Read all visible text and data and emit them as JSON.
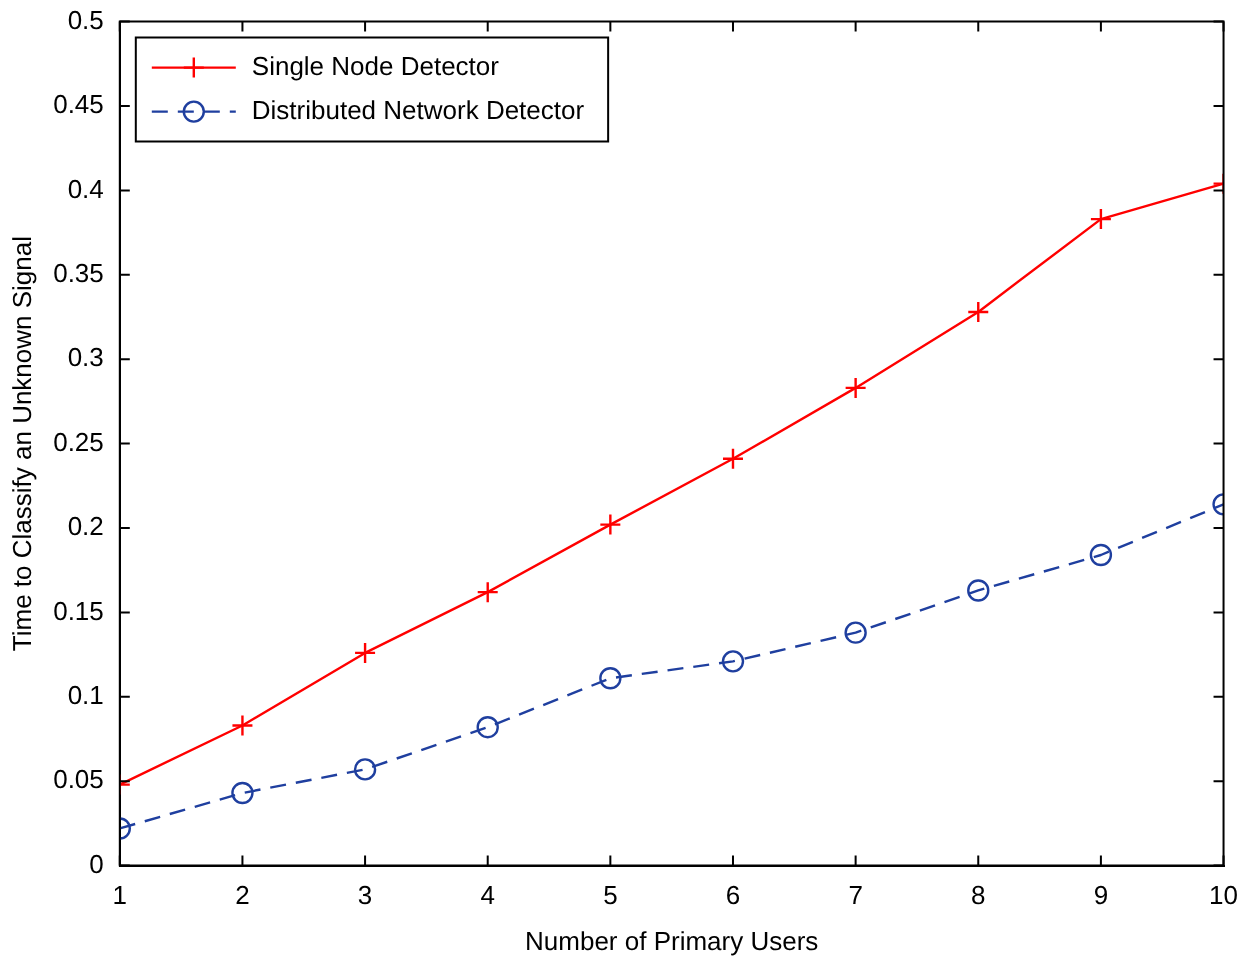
{
  "chart_data": {
    "type": "line",
    "xlabel": "Number of Primary Users",
    "ylabel": "Time to Classify an Unknown Signal",
    "x": [
      1,
      2,
      3,
      4,
      5,
      6,
      7,
      8,
      9,
      10
    ],
    "series": [
      {
        "name": "Single Node Detector",
        "color": "#ff0000",
        "marker": "cross",
        "line_style": "solid",
        "values": [
          0.048,
          0.083,
          0.126,
          0.162,
          0.202,
          0.241,
          0.283,
          0.328,
          0.383,
          0.404
        ]
      },
      {
        "name": "Distributed Network Detector",
        "color": "#1f3f9f",
        "marker": "circle",
        "line_style": "dashed",
        "values": [
          0.022,
          0.043,
          0.057,
          0.082,
          0.111,
          0.121,
          0.138,
          0.163,
          0.184,
          0.214
        ]
      }
    ],
    "xlim": [
      1,
      10
    ],
    "xticks": [
      1,
      2,
      3,
      4,
      5,
      6,
      7,
      8,
      9,
      10
    ],
    "ylim": [
      0,
      0.5
    ],
    "yticks": [
      0,
      0.05,
      0.1,
      0.15,
      0.2,
      0.25,
      0.3,
      0.35,
      0.4,
      0.45,
      0.5
    ],
    "grid": false,
    "legend": "top left"
  }
}
